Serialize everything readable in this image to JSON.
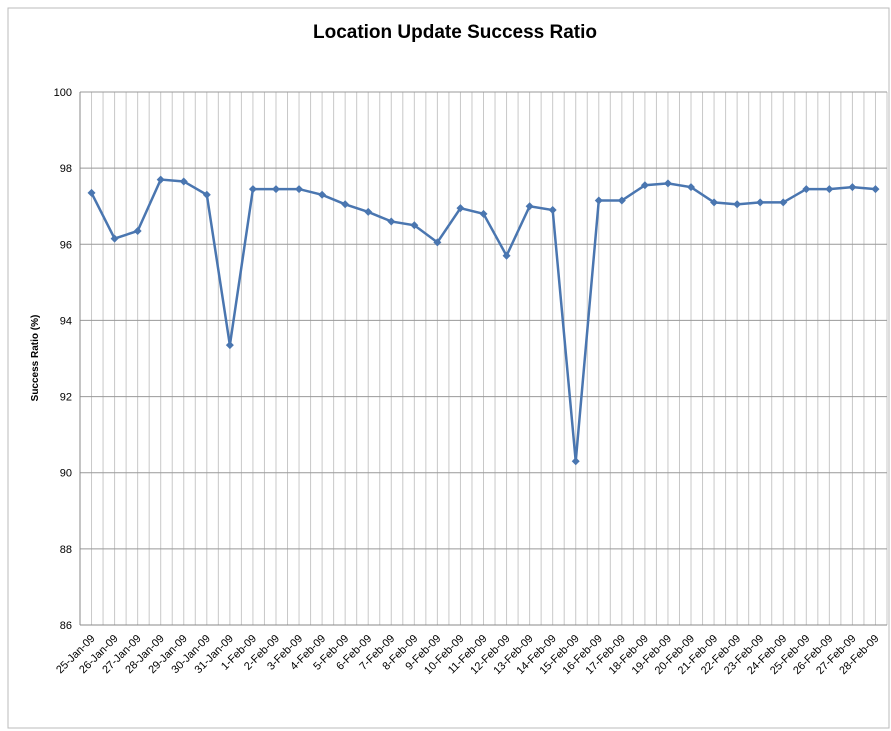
{
  "chart_data": {
    "type": "line",
    "title": "Location Update Success Ratio",
    "y_label": "Success Ratio (%)",
    "categories": [
      "25-Jan-09",
      "26-Jan-09",
      "27-Jan-09",
      "28-Jan-09",
      "29-Jan-09",
      "30-Jan-09",
      "31-Jan-09",
      "1-Feb-09",
      "2-Feb-09",
      "3-Feb-09",
      "4-Feb-09",
      "5-Feb-09",
      "6-Feb-09",
      "7-Feb-09",
      "8-Feb-09",
      "9-Feb-09",
      "10-Feb-09",
      "11-Feb-09",
      "12-Feb-09",
      "13-Feb-09",
      "14-Feb-09",
      "15-Feb-09",
      "16-Feb-09",
      "17-Feb-09",
      "18-Feb-09",
      "19-Feb-09",
      "20-Feb-09",
      "21-Feb-09",
      "22-Feb-09",
      "23-Feb-09",
      "24-Feb-09",
      "25-Feb-09",
      "26-Feb-09",
      "27-Feb-09",
      "28-Feb-09"
    ],
    "series": [
      {
        "color": "#4a76b0",
        "values": [
          97.35,
          96.15,
          96.35,
          97.7,
          97.65,
          97.3,
          93.35,
          97.45,
          97.45,
          97.45,
          97.3,
          97.05,
          96.85,
          96.6,
          96.5,
          96.05,
          96.95,
          96.8,
          95.7,
          97.0,
          96.9,
          90.3,
          97.15,
          97.15,
          97.55,
          97.6,
          97.5,
          97.1,
          97.05,
          97.1,
          97.1,
          97.45,
          97.45,
          97.5,
          97.45
        ]
      }
    ],
    "ylim": [
      86,
      100
    ],
    "yticks": [
      86,
      88,
      90,
      92,
      94,
      96,
      98,
      100
    ],
    "grid": true
  }
}
